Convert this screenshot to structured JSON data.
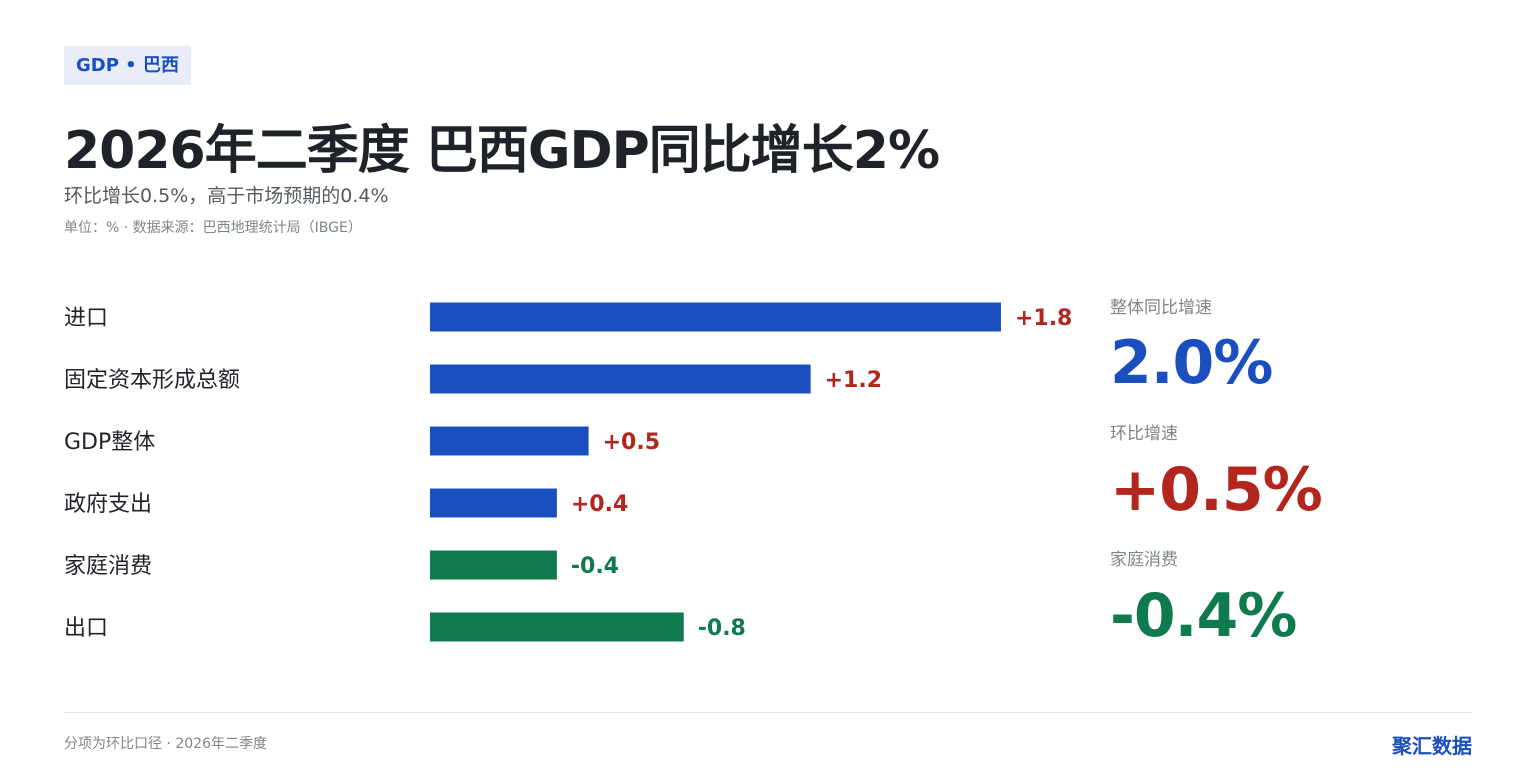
{
  "tag": "GDP • 巴西",
  "title": "2026年二季度 巴西GDP同比增长2%",
  "subtitle": "环比增长0.5%，高于市场预期的0.4%",
  "meta": "单位：% · 数据来源：巴西地理统计局（IBGE）",
  "colors": {
    "positive_bar": "#1b4fbf",
    "negative_bar": "#0e7a4e",
    "positive_label": "#b3261e",
    "negative_label": "#0e7a4e",
    "brand": "#1b4fbf"
  },
  "chart_data": {
    "type": "bar",
    "orientation": "horizontal",
    "categories": [
      "进口",
      "固定资本形成总额",
      "GDP整体",
      "政府支出",
      "家庭消费",
      "出口"
    ],
    "values": [
      1.8,
      1.2,
      0.5,
      0.4,
      -0.4,
      -0.8
    ],
    "value_labels": [
      "+1.8",
      "+1.2",
      "+0.5",
      "+0.4",
      "-0.4",
      "-0.8"
    ],
    "bar_length_by": "absolute value",
    "grid": false,
    "legend": "none"
  },
  "kpis": [
    {
      "label": "整体同比增速",
      "value": "2.0%",
      "color": "#1b4fbf"
    },
    {
      "label": "环比增速",
      "value": "+0.5%",
      "color": "#b3261e"
    },
    {
      "label": "家庭消费",
      "value": "-0.4%",
      "color": "#0e7a4e"
    }
  ],
  "footnote": "分项为环比口径 · 2026年二季度",
  "brand": "聚汇数据"
}
